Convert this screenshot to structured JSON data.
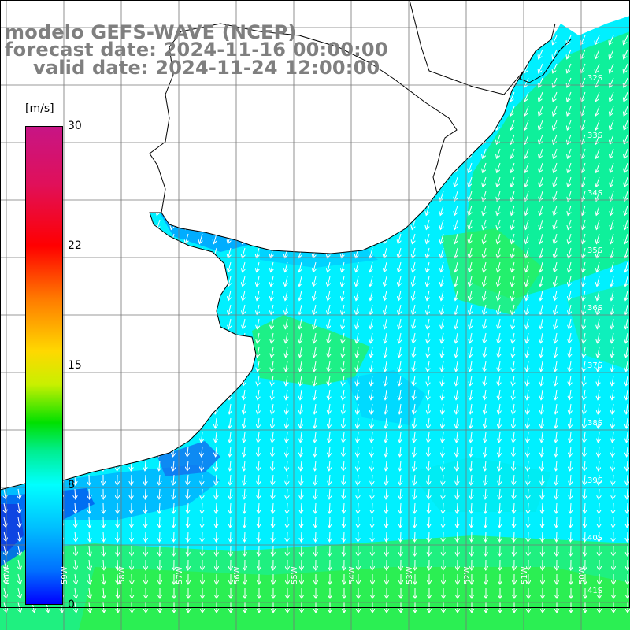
{
  "title": {
    "line1": "modelo GEFS-WAVE (NCEP)",
    "line2": "forecast date: 2024-11-16 00:00:00",
    "line3": "valid date: 2024-11-24 12:00:00"
  },
  "colorbar": {
    "unit": "[m/s]",
    "range": [
      0,
      30
    ],
    "ticks": [
      "30",
      "22",
      "15",
      "8",
      "0"
    ],
    "tick_values": [
      30,
      22,
      15,
      8,
      0
    ],
    "colors": [
      "#0000ff",
      "#00bfff",
      "#00ffff",
      "#00ff88",
      "#00e000",
      "#ffff00",
      "#ff7a00",
      "#ff0000",
      "#c71585"
    ]
  },
  "map": {
    "latitude_labels": [
      "32S",
      "33S",
      "34S",
      "35S",
      "36S",
      "37S",
      "38S",
      "39S",
      "40S",
      "41S"
    ],
    "longitude_labels": [
      "60W",
      "59W",
      "58W",
      "57W",
      "56W",
      "55W",
      "54W",
      "53W",
      "52W",
      "51W",
      "50W"
    ],
    "ocean_color": "#00f0ff",
    "land_color": "#ffffff",
    "arrow_color": "#ffffff",
    "coastline_color": "#000000",
    "grid_color": "#777777"
  }
}
